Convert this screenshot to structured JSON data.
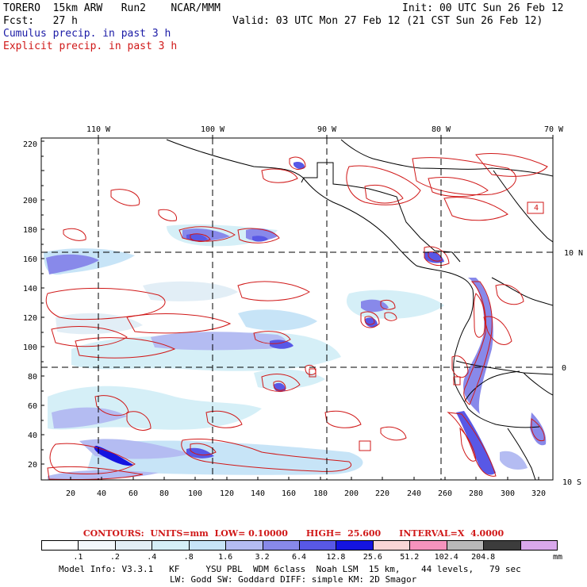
{
  "header": {
    "model": "TORERO  15km ARW   Run2    NCAR/MMM",
    "init": "Init: 00 UTC Sun 26 Feb 12",
    "fcst": "Fcst:   27 h",
    "valid": "Valid: 03 UTC Mon 27 Feb 12 (21 CST Sun 26 Feb 12)",
    "cumulus_label": "Cumulus precip. in past 3 h",
    "explicit_label": "Explicit precip. in past 3 h",
    "cumulus_color": "#1a1aa6",
    "explicit_color": "#d01818"
  },
  "map": {
    "top_lon_labels": [
      "110 W",
      "100 W",
      "90 W",
      "80 W",
      "70 W"
    ],
    "right_lat_labels": [
      "10 N",
      "0",
      "10 S"
    ],
    "y_ticks": [
      "20",
      "40",
      "60",
      "80",
      "100",
      "120",
      "140",
      "160",
      "180",
      "200",
      "220"
    ],
    "x_ticks": [
      "20",
      "40",
      "60",
      "80",
      "100",
      "120",
      "140",
      "160",
      "180",
      "200",
      "220",
      "240",
      "260",
      "280",
      "300",
      "320"
    ],
    "box_label": "4"
  },
  "contours_title": "CONTOURS:  UNITS=mm  LOW= 0.10000      HIGH=  25.600      INTERVAL=X  4.0000",
  "colorbar": {
    "levels": [
      ".1",
      ".2",
      ".4",
      ".8",
      "1.6",
      "3.2",
      "6.4",
      "12.8",
      "25.6",
      "51.2",
      "102.4",
      "204.8"
    ],
    "units": "mm",
    "colors": [
      "#ffffff",
      "#f2f7fb",
      "#e2eef6",
      "#d5eff7",
      "#c7e4f7",
      "#b4bcf2",
      "#8889ea",
      "#5858e6",
      "#1414e0",
      "#f9d6d6",
      "#f593bd",
      "#b9b9b9",
      "#3c3c3c",
      "#d9a8ec"
    ]
  },
  "footer": {
    "line1": "Model Info: V3.3.1   KF     YSU PBL  WDM 6class  Noah LSM  15 km,    44 levels,   79 sec",
    "line2": "LW: Godd SW: Goddard DIFF: simple KM: 2D Smagor"
  }
}
